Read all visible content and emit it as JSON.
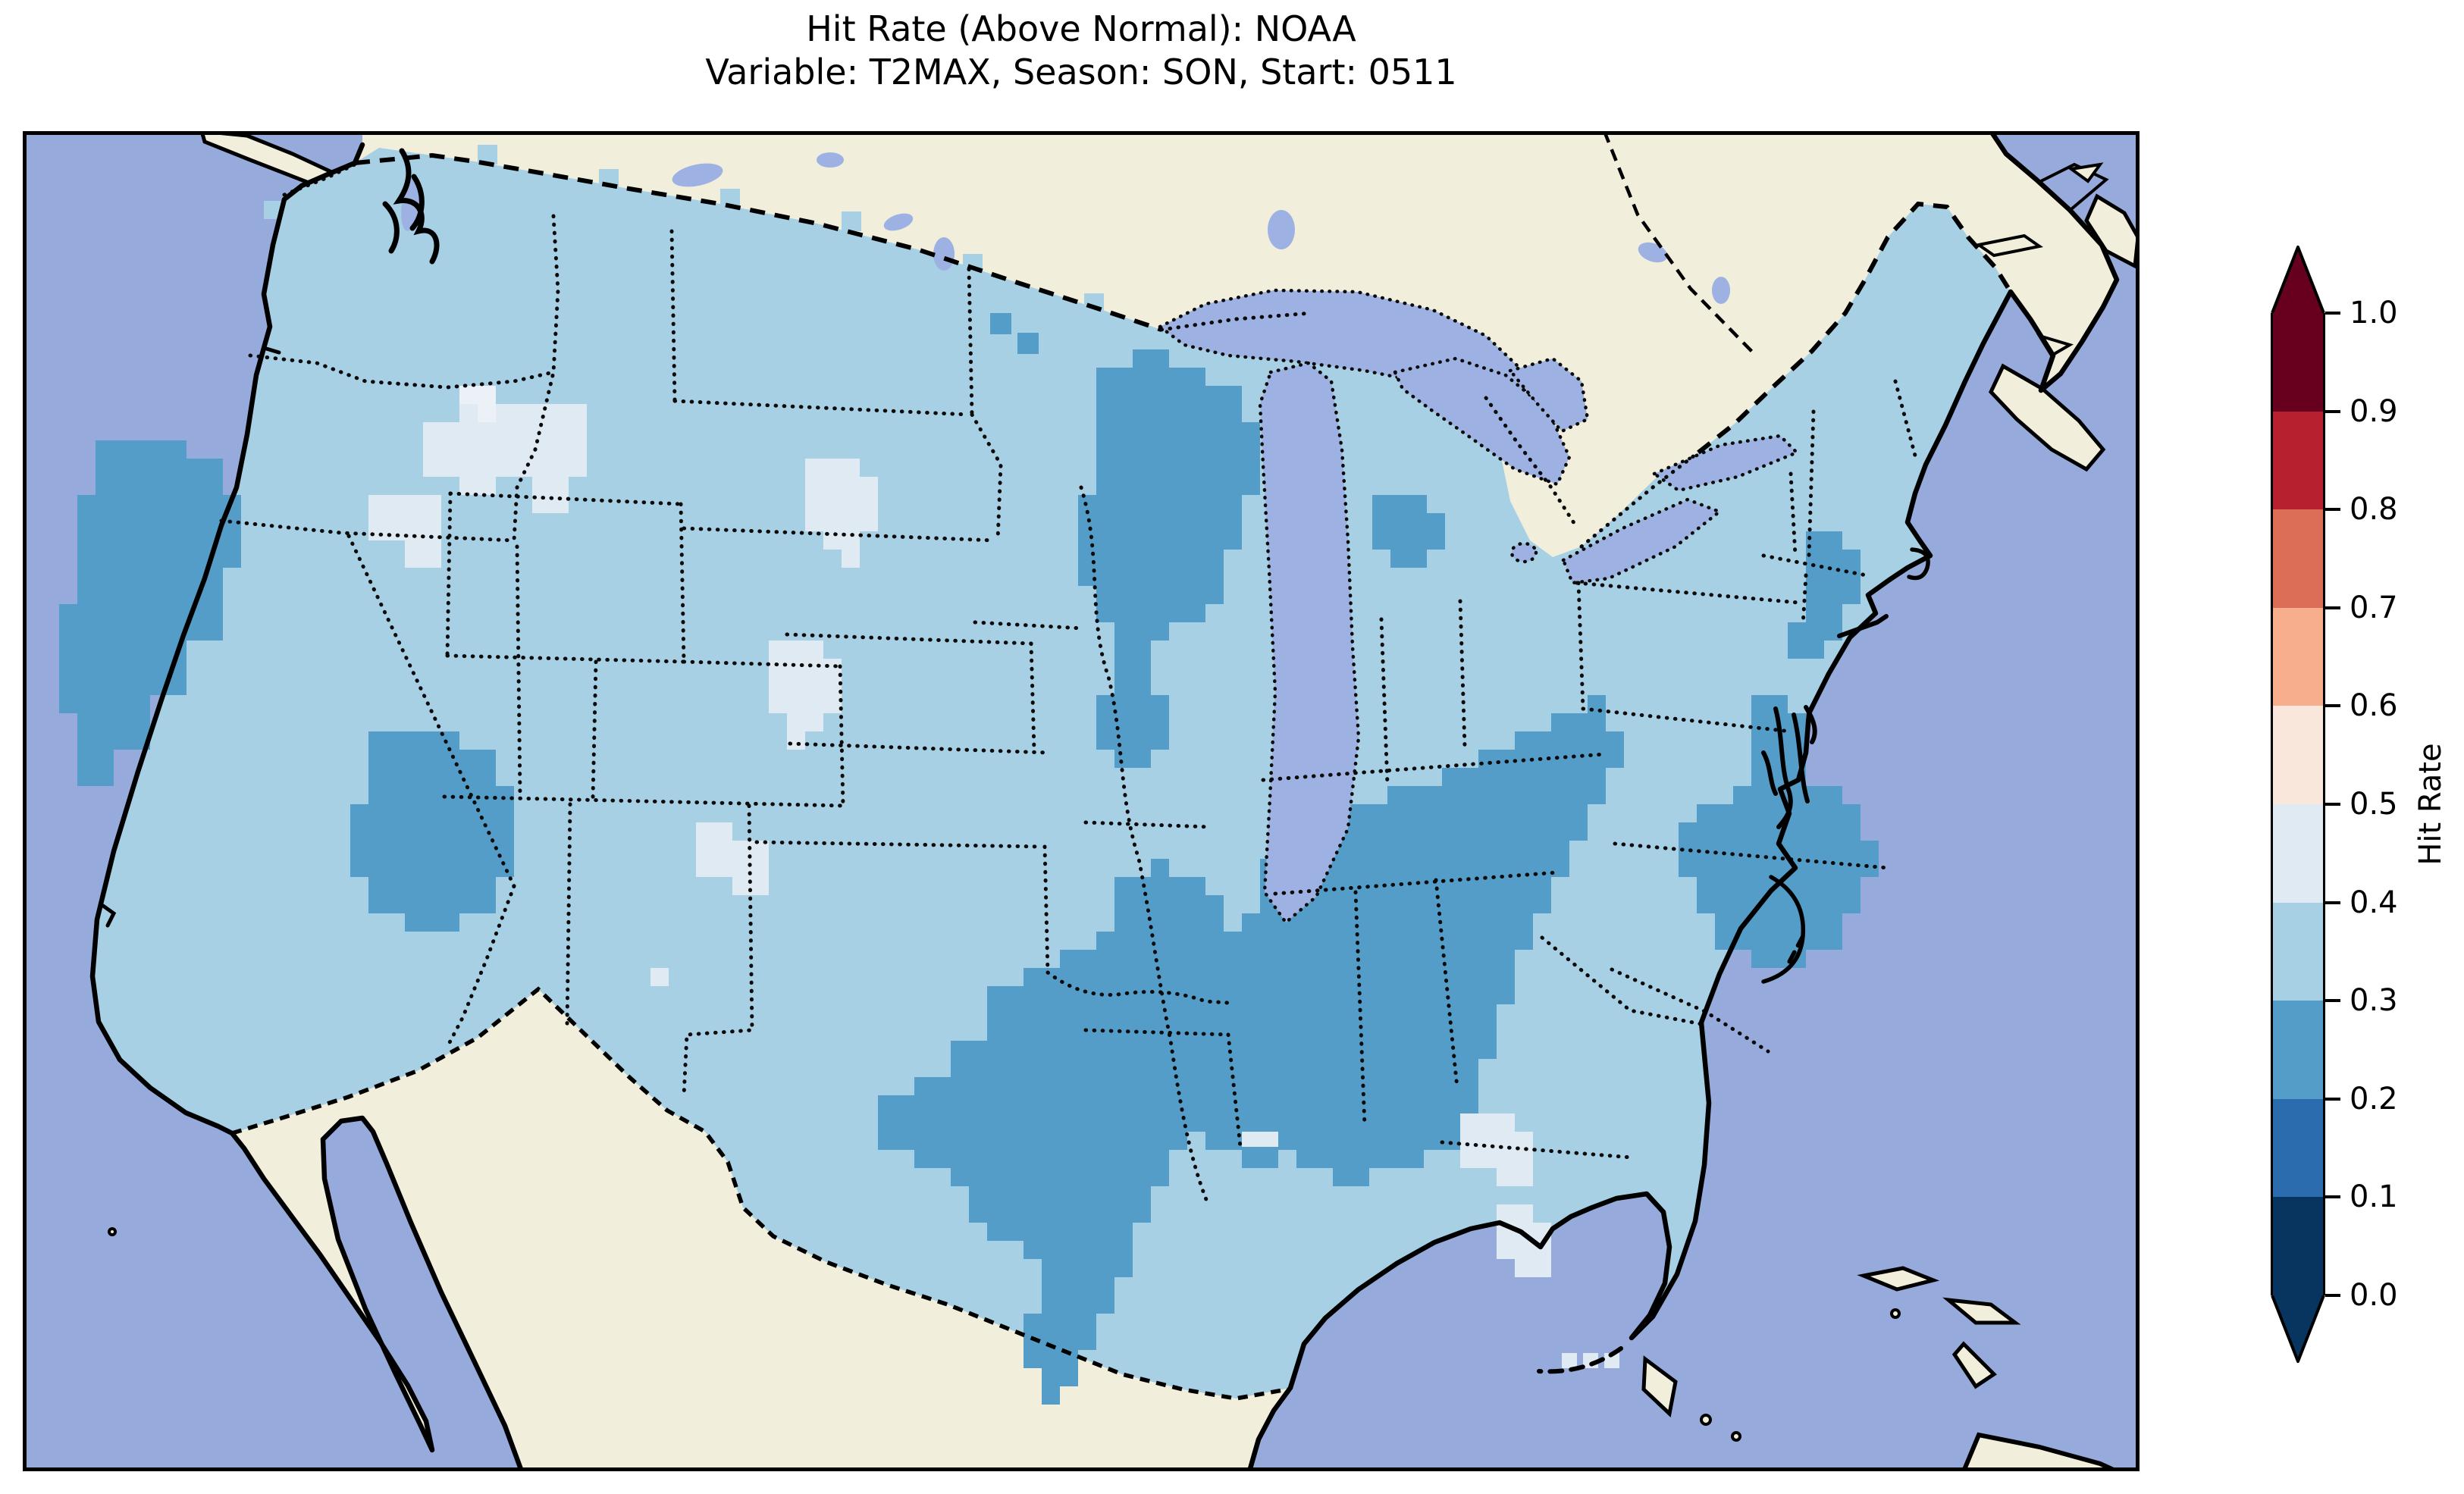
{
  "title": {
    "line1": "Hit Rate (Above Normal): NOAA",
    "line2": "Variable: T2MAX, Season: SON, Start: 0511"
  },
  "colorbar": {
    "label": "Hit Rate",
    "ticks": [
      "1.0",
      "0.9",
      "0.8",
      "0.7",
      "0.6",
      "0.5",
      "0.4",
      "0.3",
      "0.2",
      "0.1",
      "0.0"
    ],
    "bins": [
      {
        "range": "0.9-1.0",
        "color": "#67001f"
      },
      {
        "range": "0.8-0.9",
        "color": "#b6202f"
      },
      {
        "range": "0.7-0.8",
        "color": "#dc6e58"
      },
      {
        "range": "0.6-0.7",
        "color": "#f6ae8c"
      },
      {
        "range": "0.5-0.6",
        "color": "#fae7dc"
      },
      {
        "range": "0.4-0.5",
        "color": "#e0eaf2"
      },
      {
        "range": "0.3-0.4",
        "color": "#a7d0e4"
      },
      {
        "range": "0.2-0.3",
        "color": "#549dc8"
      },
      {
        "range": "0.1-0.2",
        "color": "#2a6cae"
      },
      {
        "range": "0.0-0.1",
        "color": "#083560"
      }
    ],
    "over_color": "#67001f",
    "under_color": "#083560"
  },
  "chart_data": {
    "type": "heatmap",
    "title": "Hit Rate (Above Normal): NOAA",
    "subtitle": "Variable: T2MAX, Season: SON, Start: 0511",
    "metric": "Hit Rate (Above Normal)",
    "source_label": "NOAA",
    "variable": "T2MAX",
    "season": "SON",
    "start": "0511",
    "colorbar": {
      "label": "Hit Rate",
      "orientation": "vertical",
      "extend": "both",
      "bin_edges": [
        0.0,
        0.1,
        0.2,
        0.3,
        0.4,
        0.5,
        0.6,
        0.7,
        0.8,
        0.9,
        1.0
      ],
      "colors_bottom_to_top": [
        "#083560",
        "#2a6cae",
        "#549dc8",
        "#a7d0e4",
        "#e0eaf2",
        "#fae7dc",
        "#f6ae8c",
        "#dc6e58",
        "#b6202f",
        "#67001f"
      ]
    },
    "map": {
      "extent": "Continental United States with southern Canada, northern Mexico, Gulf of Mexico and western Atlantic visible",
      "grid": "gridded hit-rate cells over U.S. land only",
      "value_range_visible": "approximately 0.2 to 0.5",
      "dominant_bin": "0.3-0.4",
      "regions_bin_02_03": [
        "coastal and central California",
        "Arizona",
        "central, eastern and southern Texas",
        "Louisiana, Mississippi, Alabama and interior Georgia",
        "Tennessee and Ohio Valley",
        "Wisconsin, upper Midwest and northern Illinois",
        "southern Michigan",
        "eastern Virginia and the Carolinas",
        "New Jersey, Delmarva and southern New England coast"
      ],
      "regions_bin_04_05": [
        "Idaho-Montana border area",
        "central Nebraska",
        "central Kansas",
        "Oklahoma / Texas panhandle vicinity",
        "central and southern Florida",
        "Mississippi River delta coast"
      ]
    },
    "colors": {
      "ocean": "#96abdb",
      "land_non_us": "#f1eedb",
      "lakes": "#9db2e2",
      "coastline": "#000000",
      "bin_0_3_0_4": "#a7d0e4",
      "bin_0_2_0_3": "#549dc8",
      "bin_0_4_0_5": "#e0eaf2",
      "pale_high": "#ebf1f6"
    }
  }
}
